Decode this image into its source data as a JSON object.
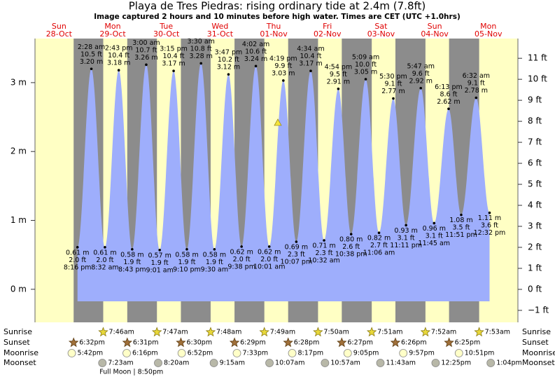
{
  "chart_data": {
    "type": "tide",
    "title": "Playa de Tres Piedras: rising  ordinary tide at 2.4m (7.8ft)",
    "subtitle": "Image captured 2 hours and 10 minutes before high water. Times are CET (UTC +1.0hrs)",
    "ylim": [
      -0.48,
      3.64
    ],
    "yticks": [
      {
        "value": 0,
        "label": "0 m"
      },
      {
        "value": 1,
        "label": "1 m"
      },
      {
        "value": 2,
        "label": "2 m"
      },
      {
        "value": 3,
        "label": "3 m"
      }
    ],
    "y2lim": [
      -1.57,
      11.94
    ],
    "y2ticks": [
      {
        "value": -1,
        "label": "−1 ft"
      },
      {
        "value": 0,
        "label": "0 ft"
      },
      {
        "value": 1,
        "label": "1 ft"
      },
      {
        "value": 2,
        "label": "2 ft"
      },
      {
        "value": 3,
        "label": "3 ft"
      },
      {
        "value": 4,
        "label": "4 ft"
      },
      {
        "value": 5,
        "label": "5 ft"
      },
      {
        "value": 6,
        "label": "6 ft"
      },
      {
        "value": 7,
        "label": "7 ft"
      },
      {
        "value": 8,
        "label": "8 ft"
      },
      {
        "value": 9,
        "label": "9 ft"
      },
      {
        "value": 10,
        "label": "10 ft"
      },
      {
        "value": 11,
        "label": "11 ft"
      }
    ],
    "color": "#9eaefc",
    "row_labels": {
      "sunrise": "Sunrise",
      "sunset": "Sunset",
      "moonrise": "Moonrise",
      "moonset": "Moonset"
    },
    "days": [
      {
        "day": "Sun",
        "date": "28-Oct",
        "sunset": "6:32pm",
        "moonrise": "5:42pm"
      },
      {
        "day": "Mon",
        "date": "29-Oct",
        "sunrise": "7:46am",
        "sunset": "6:31pm",
        "moonrise": "6:16pm",
        "moonset": "7:23am",
        "moon_phase": "Full Moon | 8:50pm"
      },
      {
        "day": "Tue",
        "date": "30-Oct",
        "sunrise": "7:47am",
        "sunset": "6:30pm",
        "moonrise": "6:52pm",
        "moonset": "8:20am"
      },
      {
        "day": "Wed",
        "date": "31-Oct",
        "sunrise": "7:48am",
        "sunset": "6:29pm",
        "moonrise": "7:33pm",
        "moonset": "9:15am"
      },
      {
        "day": "Thu",
        "date": "01-Nov",
        "sunrise": "7:49am",
        "sunset": "6:28pm",
        "moonrise": "8:17pm",
        "moonset": "10:07am"
      },
      {
        "day": "Fri",
        "date": "02-Nov",
        "sunrise": "7:50am",
        "sunset": "6:27pm",
        "moonrise": "9:05pm",
        "moonset": "10:57am"
      },
      {
        "day": "Sat",
        "date": "03-Nov",
        "sunrise": "7:51am",
        "sunset": "6:26pm",
        "moonrise": "9:57pm",
        "moonset": "11:43am"
      },
      {
        "day": "Sun",
        "date": "04-Nov",
        "sunrise": "7:52am",
        "sunset": "6:25pm",
        "moonrise": "10:51pm",
        "moonset": "12:25pm"
      },
      {
        "day": "Mon",
        "date": "05-Nov",
        "sunrise": "7:53am",
        "moonset": "1:04pm"
      }
    ],
    "tides": [
      {
        "time": "8:16 pm",
        "height": 0.61,
        "height_label": "0.61 m",
        "feet_label": "2.0 ft"
      },
      {
        "time": "2:28 am",
        "height": 3.2,
        "height_label": "3.20 m",
        "feet_label": "10.5 ft"
      },
      {
        "time": "8:32 am",
        "height": 0.61,
        "height_label": "0.61 m",
        "feet_label": "2.0 ft"
      },
      {
        "time": "2:43 pm",
        "height": 3.18,
        "height_label": "3.18 m",
        "feet_label": "10.4 ft"
      },
      {
        "time": "8:43 pm",
        "height": 0.58,
        "height_label": "0.58 m",
        "feet_label": "1.9 ft"
      },
      {
        "time": "3:00 am",
        "height": 3.26,
        "height_label": "3.26 m",
        "feet_label": "10.7 ft"
      },
      {
        "time": "9:01 am",
        "height": 0.57,
        "height_label": "0.57 m",
        "feet_label": "1.9 ft"
      },
      {
        "time": "3:15 pm",
        "height": 3.17,
        "height_label": "3.17 m",
        "feet_label": "10.4 ft"
      },
      {
        "time": "9:10 pm",
        "height": 0.58,
        "height_label": "0.58 m",
        "feet_label": "1.9 ft"
      },
      {
        "time": "3:30 am",
        "height": 3.28,
        "height_label": "3.28 m",
        "feet_label": "10.8 ft"
      },
      {
        "time": "9:30 am",
        "height": 0.58,
        "height_label": "0.58 m",
        "feet_label": "1.9 ft"
      },
      {
        "time": "3:47 pm",
        "height": 3.12,
        "height_label": "3.12 m",
        "feet_label": "10.2 ft"
      },
      {
        "time": "9:38 pm",
        "height": 0.62,
        "height_label": "0.62 m",
        "feet_label": "2.0 ft"
      },
      {
        "time": "4:02 am",
        "height": 3.24,
        "height_label": "3.24 m",
        "feet_label": "10.6 ft"
      },
      {
        "time": "10:01 am",
        "height": 0.62,
        "height_label": "0.62 m",
        "feet_label": "2.0 ft"
      },
      {
        "time": "4:19 pm",
        "height": 3.03,
        "height_label": "3.03 m",
        "feet_label": "9.9 ft"
      },
      {
        "time": "10:07 pm",
        "height": 0.69,
        "height_label": "0.69 m",
        "feet_label": "2.3 ft"
      },
      {
        "time": "4:34 am",
        "height": 3.17,
        "height_label": "3.17 m",
        "feet_label": "10.4 ft"
      },
      {
        "time": "10:32 am",
        "height": 0.71,
        "height_label": "0.71 m",
        "feet_label": "2.3 ft"
      },
      {
        "time": "4:54 pm",
        "height": 2.91,
        "height_label": "2.91 m",
        "feet_label": "9.5 ft"
      },
      {
        "time": "10:38 pm",
        "height": 0.8,
        "height_label": "0.80 m",
        "feet_label": "2.6 ft"
      },
      {
        "time": "5:09 am",
        "height": 3.05,
        "height_label": "3.05 m",
        "feet_label": "10.0 ft"
      },
      {
        "time": "11:06 am",
        "height": 0.82,
        "height_label": "0.82 m",
        "feet_label": "2.7 ft"
      },
      {
        "time": "5:30 pm",
        "height": 2.77,
        "height_label": "2.77 m",
        "feet_label": "9.1 ft"
      },
      {
        "time": "11:11 pm",
        "height": 0.93,
        "height_label": "0.93 m",
        "feet_label": "3.1 ft"
      },
      {
        "time": "5:47 am",
        "height": 2.92,
        "height_label": "2.92 m",
        "feet_label": "9.6 ft"
      },
      {
        "time": "11:45 am",
        "height": 0.96,
        "height_label": "0.96 m",
        "feet_label": "3.1 ft"
      },
      {
        "time": "6:13 pm",
        "height": 2.62,
        "height_label": "2.62 m",
        "feet_label": "8.6 ft"
      },
      {
        "time": "11:51 pm",
        "height": 1.08,
        "height_label": "1.08 m",
        "feet_label": "3.5 ft"
      },
      {
        "time": "6:32 am",
        "height": 2.78,
        "height_label": "2.78 m",
        "feet_label": "9.1 ft"
      },
      {
        "time": "12:32 pm",
        "height": 1.11,
        "height_label": "1.11 m",
        "feet_label": "3.6 ft"
      }
    ]
  }
}
